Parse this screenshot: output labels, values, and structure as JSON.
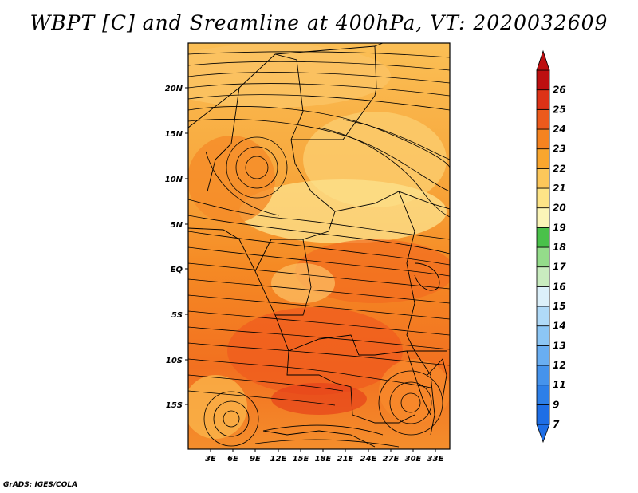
{
  "title": "WBPT [C] and Sreamline at 400hPa, VT: 2020032609",
  "credit": "GrADS: IGES/COLA",
  "map": {
    "lat_labels": [
      "20N",
      "15N",
      "10N",
      "5N",
      "EQ",
      "5S",
      "10S",
      "15S"
    ],
    "lon_labels": [
      "3E",
      "6E",
      "9E",
      "12E",
      "15E",
      "18E",
      "21E",
      "24E",
      "27E",
      "30E",
      "33E"
    ],
    "field": "WBPT",
    "units": "C",
    "level": "400hPa",
    "valid_time": "2020032609"
  },
  "colorbar": {
    "labels": [
      "7",
      "9",
      "11",
      "12",
      "13",
      "14",
      "15",
      "16",
      "17",
      "18",
      "19",
      "20",
      "21",
      "22",
      "23",
      "24",
      "25",
      "26"
    ],
    "colors": [
      "#1e6ee6",
      "#2d7fe8",
      "#4593ec",
      "#69aef2",
      "#8cc6f5",
      "#b0daf8",
      "#dcf0fa",
      "#c9ecbf",
      "#94dc8a",
      "#4ac14a",
      "#fbf5b8",
      "#fde487",
      "#fcc75a",
      "#f9a62e",
      "#f58320",
      "#ec5a1c",
      "#dd3217",
      "#bd0f10"
    ]
  }
}
